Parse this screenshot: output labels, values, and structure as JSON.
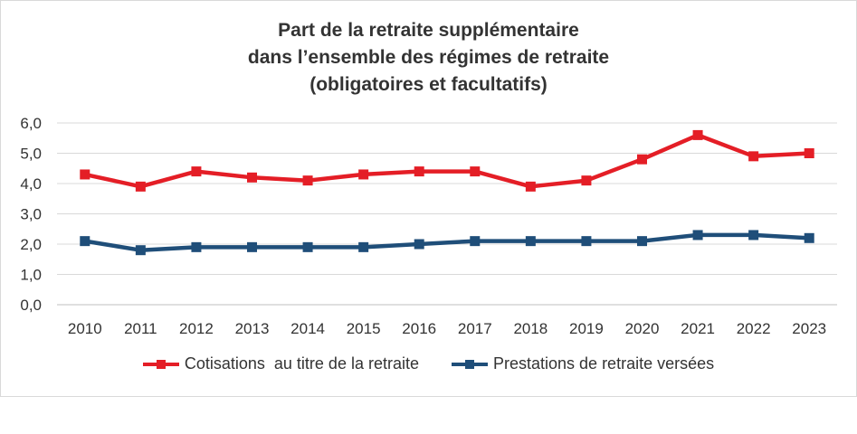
{
  "title": {
    "line1": "Part de la retraite supplémentaire",
    "line2": "dans l’ensemble des régimes de retraite",
    "line3": "(obligatoires et facultatifs)"
  },
  "chart_data": {
    "type": "line",
    "categories": [
      "2010",
      "2011",
      "2012",
      "2013",
      "2014",
      "2015",
      "2016",
      "2017",
      "2018",
      "2019",
      "2020",
      "2021",
      "2022",
      "2023"
    ],
    "yticks": [
      "0,0",
      "1,0",
      "2,0",
      "3,0",
      "4,0",
      "5,0",
      "6,0"
    ],
    "ylim": [
      0,
      6
    ],
    "grid": true,
    "legend_position": "bottom",
    "series": [
      {
        "name": "Cotisations  au titre de la retraite",
        "color": "#e41e26",
        "values": [
          4.3,
          3.9,
          4.4,
          4.2,
          4.1,
          4.3,
          4.4,
          4.4,
          3.9,
          4.1,
          4.8,
          5.6,
          4.9,
          5.0
        ]
      },
      {
        "name": "Prestations de retraite versées",
        "color": "#1f4e79",
        "values": [
          2.1,
          1.8,
          1.9,
          1.9,
          1.9,
          1.9,
          2.0,
          2.1,
          2.1,
          2.1,
          2.1,
          2.3,
          2.3,
          2.2
        ]
      }
    ]
  }
}
